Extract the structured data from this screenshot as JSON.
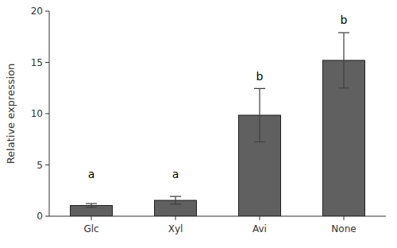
{
  "chart_data": {
    "type": "bar",
    "categories": [
      "Glc",
      "Xyl",
      "Avi",
      "None"
    ],
    "values": [
      1.05,
      1.55,
      9.85,
      15.2
    ],
    "errors": [
      0.18,
      0.38,
      2.6,
      2.7
    ],
    "color": "#606060",
    "ylabel": "Relative expression",
    "ylim": [
      0,
      20
    ],
    "yticks": [
      0,
      5,
      10,
      15,
      20
    ],
    "annotations": [
      {
        "text": "a",
        "y": 3.5
      },
      {
        "text": "a",
        "y": 3.5
      },
      {
        "text": "b",
        "y": 13.0
      },
      {
        "text": "b",
        "y": 18.5
      }
    ],
    "grid": false
  }
}
